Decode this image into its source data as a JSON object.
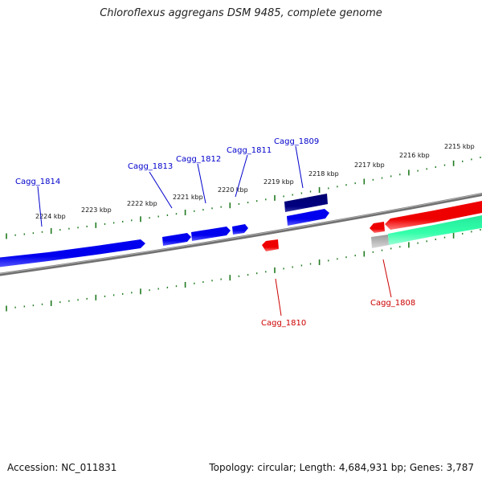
{
  "title": "Chloroflexus aggregans DSM 9485, complete genome",
  "footer": {
    "accession": "Accession: NC_011831",
    "summary": "Topology: circular; Length: 4,684,931 bp; Genes: 3,787"
  },
  "colors": {
    "background": "#ffffff",
    "backbone": "#808080",
    "tick": "#1f7a1f",
    "forward_gene": "#0000ee",
    "forward_gene_dark": "#000080",
    "reverse_gene": "#ee0000",
    "rna_gene": "#33ffaa",
    "label_forward": "#0000cc",
    "label_reverse": "#cc0000"
  },
  "scale": {
    "unit": "kbp",
    "ticks": [
      {
        "label": "2224 kbp"
      },
      {
        "label": "2223 kbp"
      },
      {
        "label": "2222 kbp"
      },
      {
        "label": "2221 kbp"
      },
      {
        "label": "2220 kbp"
      },
      {
        "label": "2219 kbp"
      },
      {
        "label": "2218 kbp"
      },
      {
        "label": "2217 kbp"
      },
      {
        "label": "2216 kbp"
      },
      {
        "label": "2215 kbp"
      }
    ]
  },
  "genes": [
    {
      "id": "Cagg_1814",
      "strand": "forward"
    },
    {
      "id": "Cagg_1813",
      "strand": "forward"
    },
    {
      "id": "Cagg_1812",
      "strand": "forward"
    },
    {
      "id": "Cagg_1811",
      "strand": "forward"
    },
    {
      "id": "Cagg_1809",
      "strand": "forward"
    },
    {
      "id": "Cagg_1810",
      "strand": "reverse"
    },
    {
      "id": "Cagg_1808",
      "strand": "reverse"
    }
  ]
}
